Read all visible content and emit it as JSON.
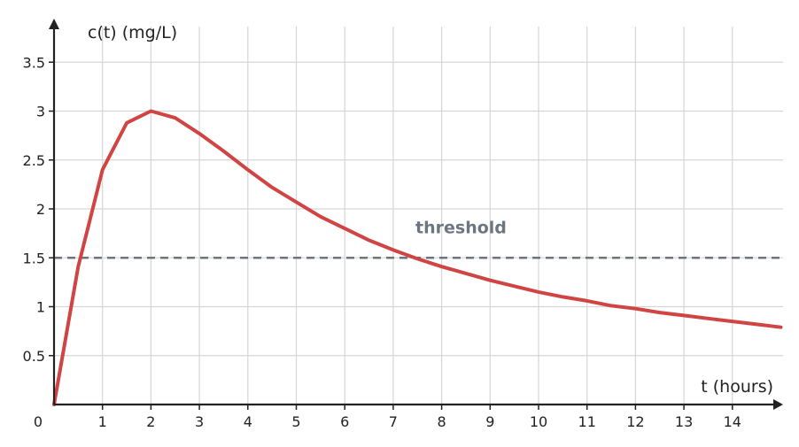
{
  "chart_data": {
    "type": "line",
    "xlabel": "t (hours)",
    "ylabel": "c(t) (mg/L)",
    "xlim": [
      0,
      15
    ],
    "ylim": [
      0,
      3.75
    ],
    "x_ticks": [
      0,
      1,
      2,
      3,
      4,
      5,
      6,
      7,
      8,
      9,
      10,
      11,
      12,
      13,
      14
    ],
    "x_tick_labels": [
      "0",
      "1",
      "2",
      "3",
      "4",
      "5",
      "6",
      "7",
      "8",
      "9",
      "10",
      "11",
      "12",
      "13",
      "14"
    ],
    "y_ticks": [
      0.5,
      1,
      1.5,
      2,
      2.5,
      3,
      3.5
    ],
    "y_tick_labels": [
      "0.5",
      "1",
      "1.5",
      "2",
      "2.5",
      "3",
      "3.5"
    ],
    "grid": true,
    "series": [
      {
        "color": "#d04444",
        "x": [
          0,
          0.5,
          1,
          1.5,
          2,
          2.5,
          3,
          3.5,
          4,
          4.5,
          5,
          5.5,
          6,
          6.5,
          7,
          7.5,
          8,
          8.5,
          9,
          9.5,
          10,
          10.5,
          11,
          11.5,
          12,
          12.5,
          13,
          13.5,
          14,
          14.5,
          15
        ],
        "y": [
          0,
          1.41,
          2.4,
          2.88,
          3.0,
          2.93,
          2.77,
          2.59,
          2.4,
          2.22,
          2.07,
          1.92,
          1.8,
          1.68,
          1.58,
          1.49,
          1.41,
          1.34,
          1.27,
          1.21,
          1.15,
          1.1,
          1.06,
          1.01,
          0.98,
          0.94,
          0.91,
          0.88,
          0.85,
          0.82,
          0.79
        ]
      }
    ],
    "annotations": [
      {
        "text": "threshold",
        "type": "hline",
        "y": 1.5,
        "x_text": 8.4,
        "color": "#6b7680",
        "style": "dashed"
      }
    ]
  }
}
